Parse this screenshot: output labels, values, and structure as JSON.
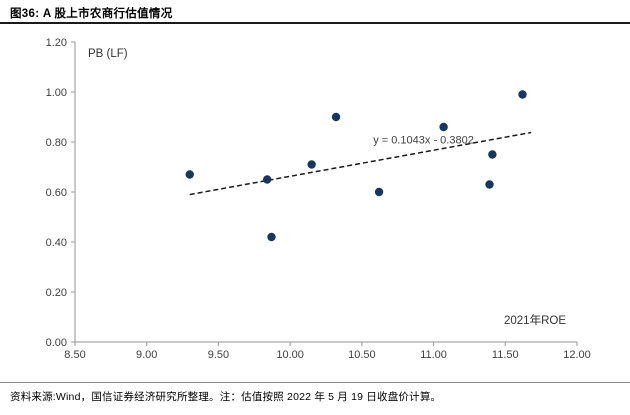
{
  "header": {
    "title": "图36: A 股上市农商行估值情况"
  },
  "footer": {
    "source": "资料来源:Wind，国信证券经济研究所整理。注：估值按照 2022 年 5 月 19 日收盘价计算。"
  },
  "chart_data": {
    "type": "scatter",
    "y_axis_title": "PB (LF)",
    "x_axis_title": "2021年ROE",
    "xlim": [
      8.5,
      12.0
    ],
    "ylim": [
      0.0,
      1.2
    ],
    "x_ticks": [
      8.5,
      9.0,
      9.5,
      10.0,
      10.5,
      11.0,
      11.5,
      12.0
    ],
    "x_tick_labels": [
      "8.50",
      "9.00",
      "9.50",
      "10.00",
      "10.50",
      "11.00",
      "11.50",
      "12.00"
    ],
    "y_ticks": [
      0.0,
      0.2,
      0.4,
      0.6,
      0.8,
      1.0,
      1.2
    ],
    "y_tick_labels": [
      "0.00",
      "0.20",
      "0.40",
      "0.60",
      "0.80",
      "1.00",
      "1.20"
    ],
    "grid": false,
    "legend": "none",
    "points": [
      {
        "x": 9.3,
        "y": 0.67
      },
      {
        "x": 9.84,
        "y": 0.65
      },
      {
        "x": 9.87,
        "y": 0.42
      },
      {
        "x": 10.15,
        "y": 0.71
      },
      {
        "x": 10.32,
        "y": 0.9
      },
      {
        "x": 10.62,
        "y": 0.6
      },
      {
        "x": 11.07,
        "y": 0.86
      },
      {
        "x": 11.39,
        "y": 0.63
      },
      {
        "x": 11.41,
        "y": 0.75
      },
      {
        "x": 11.62,
        "y": 0.99
      }
    ],
    "trendline": {
      "equation": "y = 0.1043x - 0.3802",
      "slope": 0.1043,
      "intercept": -0.3802,
      "x_start": 9.3,
      "x_end": 11.68,
      "label_anchor": {
        "x": 10.93,
        "y": 0.795
      }
    },
    "colors": {
      "point": "#17375e",
      "trendline": "#1a1a1a",
      "axis": "#a6a6a6",
      "tick_text": "#404040",
      "annotation_text": "#404040",
      "axis_title_text": "#333333"
    }
  }
}
